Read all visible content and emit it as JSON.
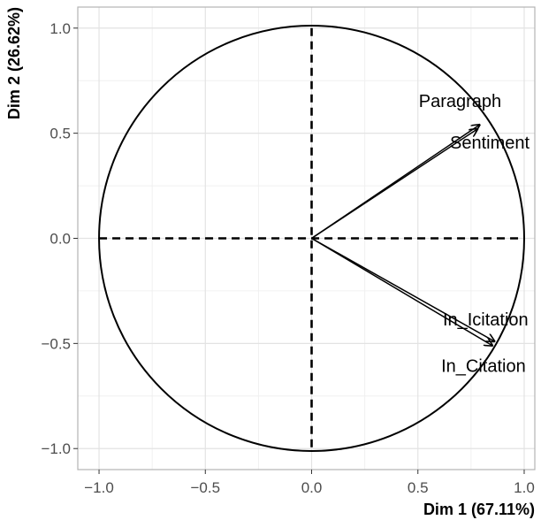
{
  "chart_data": {
    "type": "scatter",
    "subtype": "pca-correlation-circle",
    "title": "",
    "xlabel": "Dim 1 (67.11%)",
    "ylabel": "Dim 2 (26.62%)",
    "xlim": [
      -1.1,
      1.05
    ],
    "ylim": [
      -1.1,
      1.1
    ],
    "x_ticks": [
      -1.0,
      -0.5,
      0.0,
      0.5,
      1.0
    ],
    "x_tick_labels": [
      "−1.0",
      "−0.5",
      "0.0",
      "0.5",
      "1.0"
    ],
    "y_ticks": [
      -1.0,
      -0.5,
      0.0,
      0.5,
      1.0
    ],
    "y_tick_labels": [
      "−1.0",
      "−0.5",
      "0.0",
      "0.5",
      "1.0"
    ],
    "grid": true,
    "unit_circle": true,
    "reference_lines": [
      "x=0",
      "y=0"
    ],
    "variables": [
      {
        "name": "Paragraph",
        "x": 0.79,
        "y": 0.54
      },
      {
        "name": "Sentiment",
        "x": 0.78,
        "y": 0.52
      },
      {
        "name": "In_Icitation",
        "x": 0.86,
        "y": -0.49
      },
      {
        "name": "In_Citation",
        "x": 0.85,
        "y": -0.51
      }
    ]
  }
}
